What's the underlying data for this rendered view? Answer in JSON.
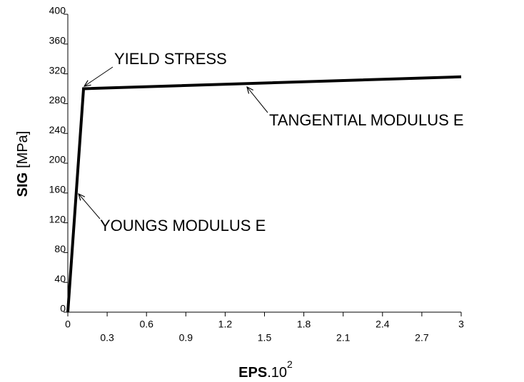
{
  "chart_data": {
    "type": "line",
    "x": [
      0,
      0.12,
      3
    ],
    "series": [
      {
        "values": [
          0,
          300,
          316
        ],
        "color": "#000000"
      }
    ],
    "xlim": [
      0,
      3
    ],
    "ylim": [
      0,
      400
    ],
    "xticks": [
      0,
      0.3,
      0.6,
      0.9,
      1.2,
      1.5,
      1.8,
      2.1,
      2.4,
      2.7,
      3
    ],
    "yticks": [
      0,
      40,
      80,
      120,
      160,
      200,
      240,
      280,
      320,
      360,
      400
    ],
    "y_label": {
      "name": "SIG",
      "unit": "[MPa]"
    },
    "x_label": {
      "name": "EPS",
      "factor": ".10",
      "exponent": "2"
    },
    "annotations": [
      "YIELD STRESS",
      "TANGENTIAL MODULUS E",
      "YOUNGS MODULUS E"
    ]
  }
}
